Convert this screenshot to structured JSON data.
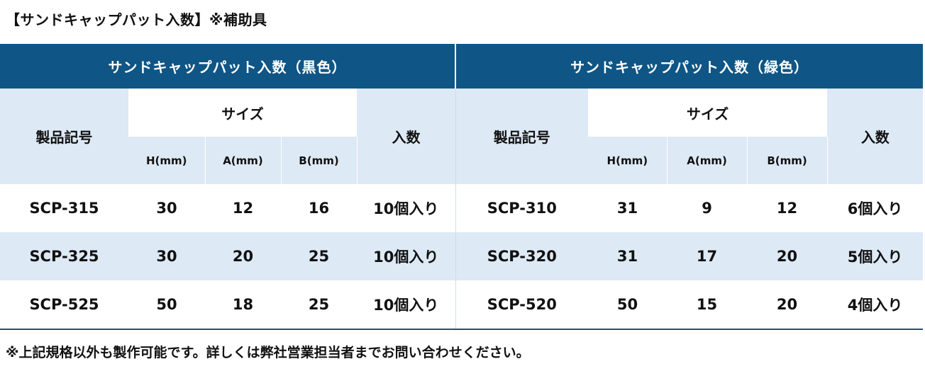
{
  "heading": "【サンドキャップパット入数】※補助具",
  "footnote": "※上記規格以外も製作可能です。詳しくは弊社営業担当者までお問い合わせください。",
  "table": {
    "left_group_title": "サンドキャップパット入数（黒色）",
    "right_group_title": "サンドキャップパット入数（緑色）",
    "product_code_label": "製品記号",
    "size_label": "サイズ",
    "quantity_label": "入数",
    "dim_h": "H(mm)",
    "dim_a": "A(mm)",
    "dim_b": "B(mm)",
    "rows": [
      {
        "left": {
          "code": "SCP-315",
          "h": "30",
          "a": "12",
          "b": "16",
          "qty": "10個入り"
        },
        "right": {
          "code": "SCP-310",
          "h": "31",
          "a": "9",
          "b": "12",
          "qty": "6個入り"
        }
      },
      {
        "left": {
          "code": "SCP-325",
          "h": "30",
          "a": "20",
          "b": "25",
          "qty": "10個入り"
        },
        "right": {
          "code": "SCP-320",
          "h": "31",
          "a": "17",
          "b": "20",
          "qty": "5個入り"
        }
      },
      {
        "left": {
          "code": "SCP-525",
          "h": "50",
          "a": "18",
          "b": "25",
          "qty": "10個入り"
        },
        "right": {
          "code": "SCP-520",
          "h": "50",
          "a": "15",
          "b": "20",
          "qty": "4個入り"
        }
      }
    ]
  },
  "colors": {
    "header_blue": "#0f5585",
    "light_blue": "#dde9f5",
    "white": "#ffffff"
  }
}
